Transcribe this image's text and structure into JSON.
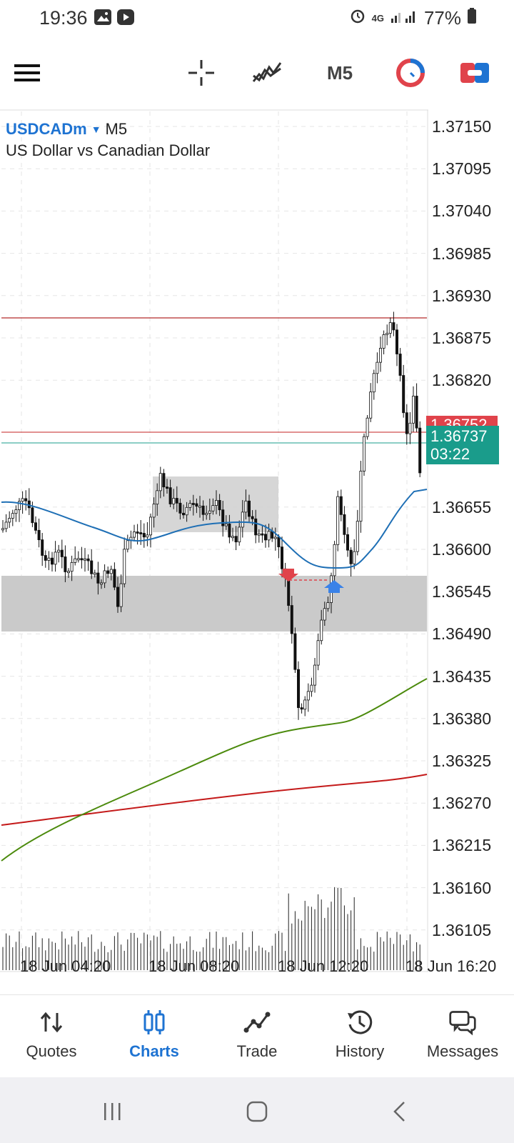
{
  "status_bar": {
    "time": "19:36",
    "network": "4G",
    "battery": "77%",
    "icons": [
      "gallery-icon",
      "youtube-icon",
      "alarm-icon",
      "signal-icon",
      "battery-icon"
    ]
  },
  "toolbar": {
    "timeframe": "M5",
    "icons": [
      "menu-icon",
      "crosshair-icon",
      "indicators-icon",
      "timeframe",
      "one-click-trading-icon",
      "trade-toggle-icon"
    ]
  },
  "chart": {
    "symbol": "USDCADm",
    "timeframe": "M5",
    "description": "US Dollar vs Canadian Dollar",
    "price_axis": [
      "1.37150",
      "1.37095",
      "1.37040",
      "1.36985",
      "1.36930",
      "1.36875",
      "1.36820",
      "1.36765",
      "1.36710",
      "1.36655",
      "1.36600",
      "1.36545",
      "1.36490",
      "1.36435",
      "1.36380",
      "1.36325",
      "1.36270",
      "1.36215",
      "1.36160",
      "1.36105"
    ],
    "time_axis": [
      "18 Jun 04:20",
      "18 Jun 08:20",
      "18 Jun 12:20",
      "18 Jun 16:20"
    ],
    "ask_tag": "1.36752",
    "bid_tag": "1.36737",
    "countdown": "03:22",
    "colors": {
      "bullish_bearish_candles": "#000000",
      "ma_fast": "#1e6fb5",
      "ma_mid": "#4b8a0c",
      "ma_slow": "#c41a1a",
      "ask_line": "#c42323",
      "bid_line": "#1a9c8b",
      "zone": "#c7c7c7"
    }
  },
  "bottom_nav": {
    "items": [
      {
        "label": "Quotes",
        "icon": "quotes-icon"
      },
      {
        "label": "Charts",
        "icon": "charts-icon"
      },
      {
        "label": "Trade",
        "icon": "trade-icon"
      },
      {
        "label": "History",
        "icon": "history-icon"
      },
      {
        "label": "Messages",
        "icon": "messages-icon"
      }
    ],
    "active": "Charts"
  },
  "system_nav": {
    "icons": [
      "recent-apps-icon",
      "home-icon",
      "back-icon"
    ]
  }
}
